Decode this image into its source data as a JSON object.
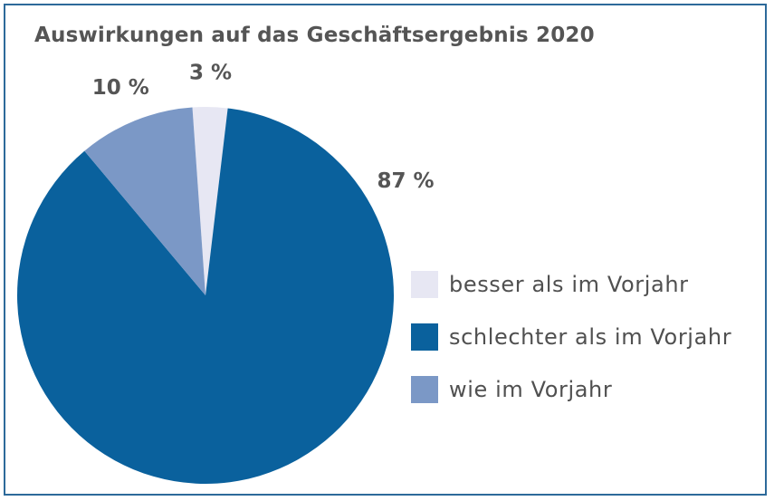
{
  "title": "Auswirkungen auf das Geschäftsergebnis 2020",
  "chart_data": {
    "type": "pie",
    "title": "Auswirkungen auf das Geschäftsergebnis 2020",
    "slices": [
      {
        "label": "besser als im Vorjahr",
        "value": 3,
        "value_label": "3 %",
        "color": "#e7e7f3"
      },
      {
        "label": "schlechter als im Vorjahr",
        "value": 87,
        "value_label": "87 %",
        "color": "#0a619d"
      },
      {
        "label": "wie im Vorjahr",
        "value": 10,
        "value_label": "10 %",
        "color": "#7b98c6"
      }
    ],
    "legend_position": "right"
  }
}
